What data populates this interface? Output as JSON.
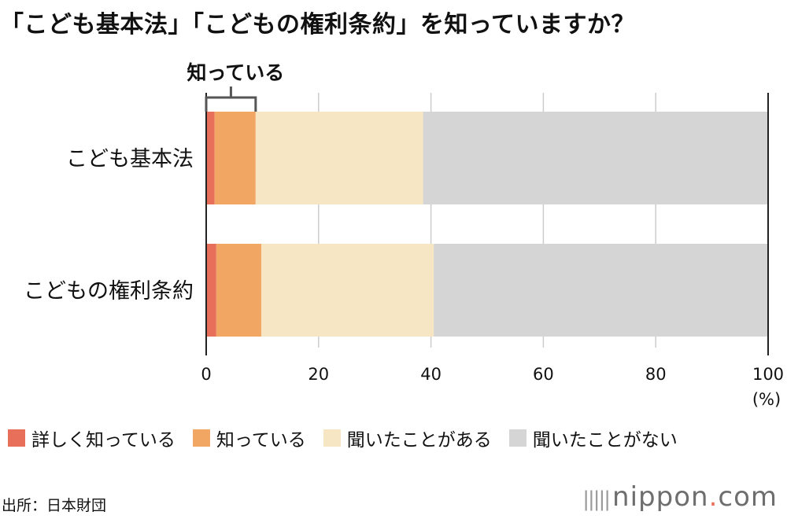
{
  "title": "「こども基本法」「こどもの権利条約」を知っていますか？",
  "source": "出所：日本財団",
  "brand": {
    "mark": "|||||",
    "name": "nippon",
    "dot": ".",
    "tld": "com"
  },
  "colors": {
    "detailed": "#e8705a",
    "know": "#f2a664",
    "heard": "#f6e6c4",
    "never": "#d5d5d5"
  },
  "chart_data": {
    "type": "bar",
    "orientation": "horizontal",
    "stacked": true,
    "categories": [
      "こども基本法",
      "こどもの権利条約"
    ],
    "series": [
      {
        "name": "詳しく知っている",
        "color": "#e8705a",
        "values": [
          1.5,
          1.8
        ]
      },
      {
        "name": "知っている",
        "color": "#f2a664",
        "values": [
          7.3,
          8.0
        ]
      },
      {
        "name": "聞いたことがある",
        "color": "#f6e6c4",
        "values": [
          29.8,
          30.7
        ]
      },
      {
        "name": "聞いたことがない",
        "color": "#d5d5d5",
        "values": [
          61.4,
          59.5
        ]
      }
    ],
    "xlim": [
      0,
      100
    ],
    "xticks": [
      "0",
      "20",
      "40",
      "60",
      "80",
      "100"
    ],
    "xunit": "(%)",
    "grid": true,
    "legend": "bottom",
    "annotation": {
      "text": "知っている",
      "range": [
        0,
        8.8
      ]
    }
  }
}
